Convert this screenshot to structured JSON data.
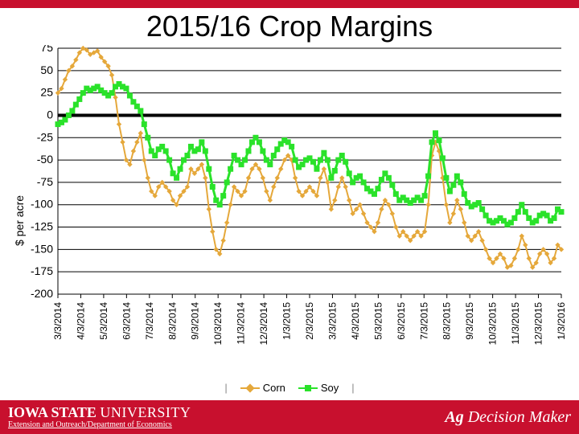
{
  "layout": {
    "top_bar_color": "#c8102e",
    "footer_bar_color": "#c8102e",
    "background": "#ffffff"
  },
  "title": "2015/16 Crop Margins",
  "chart": {
    "type": "line",
    "ylabel": "$ per acre",
    "label_fontsize": 14,
    "ylim": [
      -200,
      75
    ],
    "ytick_step": 25,
    "yticks": [
      75,
      50,
      25,
      0,
      -25,
      -50,
      -75,
      -100,
      -125,
      -150,
      -175,
      -200
    ],
    "xticks": [
      "3/3/2014",
      "4/3/2014",
      "5/3/2014",
      "6/3/2014",
      "7/3/2014",
      "8/3/2014",
      "9/3/2014",
      "10/3/2014",
      "11/3/2014",
      "12/3/2014",
      "1/3/2015",
      "2/3/2015",
      "3/3/2015",
      "4/3/2015",
      "5/3/2015",
      "6/3/2015",
      "7/3/2015",
      "8/3/2015",
      "9/3/2015",
      "10/3/2015",
      "11/3/2015",
      "12/3/2015",
      "1/3/2016"
    ],
    "grid_color": "#000000",
    "zero_line_color": "#000000",
    "zero_line_width": 4,
    "tick_fontsize": 12,
    "plot_bg": "#ffffff",
    "legend_divider_color": "#888888",
    "series": [
      {
        "name": "Corn",
        "color": "#e5a83b",
        "marker": "diamond",
        "line_width": 2,
        "marker_size": 5,
        "values": [
          25,
          30,
          40,
          50,
          55,
          62,
          70,
          75,
          73,
          68,
          70,
          72,
          65,
          60,
          55,
          45,
          20,
          -10,
          -30,
          -50,
          -55,
          -40,
          -30,
          -20,
          -50,
          -70,
          -85,
          -90,
          -80,
          -75,
          -80,
          -85,
          -95,
          -100,
          -90,
          -85,
          -80,
          -60,
          -65,
          -60,
          -55,
          -70,
          -105,
          -130,
          -150,
          -155,
          -140,
          -120,
          -100,
          -80,
          -85,
          -90,
          -85,
          -70,
          -60,
          -55,
          -60,
          -70,
          -85,
          -95,
          -80,
          -70,
          -60,
          -50,
          -45,
          -50,
          -70,
          -85,
          -90,
          -85,
          -80,
          -85,
          -90,
          -70,
          -60,
          -75,
          -105,
          -95,
          -80,
          -70,
          -80,
          -95,
          -110,
          -105,
          -100,
          -110,
          -120,
          -125,
          -130,
          -120,
          -105,
          -95,
          -100,
          -110,
          -125,
          -135,
          -130,
          -135,
          -140,
          -135,
          -130,
          -135,
          -130,
          -100,
          -45,
          -30,
          -40,
          -70,
          -100,
          -120,
          -110,
          -95,
          -105,
          -120,
          -135,
          -140,
          -135,
          -130,
          -140,
          -150,
          -160,
          -165,
          -160,
          -155,
          -160,
          -170,
          -168,
          -160,
          -150,
          -135,
          -145,
          -160,
          -170,
          -165,
          -155,
          -150,
          -155,
          -165,
          -160,
          -145,
          -150
        ]
      },
      {
        "name": "Soy",
        "color": "#2ae22a",
        "marker": "square",
        "line_width": 3,
        "marker_size": 6,
        "values": [
          -10,
          -8,
          -5,
          0,
          5,
          12,
          18,
          25,
          30,
          28,
          30,
          32,
          28,
          25,
          22,
          25,
          32,
          35,
          32,
          30,
          22,
          15,
          10,
          5,
          -10,
          -25,
          -40,
          -45,
          -38,
          -35,
          -40,
          -50,
          -65,
          -70,
          -60,
          -50,
          -45,
          -35,
          -40,
          -38,
          -30,
          -40,
          -60,
          -80,
          -95,
          -100,
          -90,
          -75,
          -60,
          -45,
          -50,
          -55,
          -50,
          -40,
          -30,
          -25,
          -30,
          -40,
          -50,
          -55,
          -45,
          -38,
          -32,
          -28,
          -30,
          -35,
          -50,
          -58,
          -55,
          -50,
          -48,
          -52,
          -60,
          -50,
          -42,
          -50,
          -70,
          -62,
          -50,
          -45,
          -52,
          -65,
          -75,
          -70,
          -68,
          -75,
          -82,
          -85,
          -88,
          -82,
          -72,
          -65,
          -70,
          -78,
          -88,
          -95,
          -92,
          -95,
          -98,
          -95,
          -92,
          -95,
          -90,
          -68,
          -30,
          -20,
          -28,
          -48,
          -70,
          -85,
          -78,
          -68,
          -75,
          -88,
          -98,
          -102,
          -100,
          -98,
          -105,
          -112,
          -118,
          -120,
          -118,
          -115,
          -118,
          -122,
          -120,
          -115,
          -108,
          -100,
          -108,
          -115,
          -120,
          -118,
          -112,
          -110,
          -112,
          -118,
          -115,
          -105,
          -108
        ]
      }
    ]
  },
  "legend": {
    "items": [
      {
        "label": "Corn",
        "color": "#e5a83b",
        "marker": "diamond"
      },
      {
        "label": "Soy",
        "color": "#2ae22a",
        "marker": "square"
      }
    ]
  },
  "footer": {
    "logo_primary": "IOWA STATE",
    "logo_secondary": "UNIVERSITY",
    "subline": "Extension and Outreach/Department of Economics",
    "brand_ag": "Ag",
    "brand_rest": " Decision Maker"
  }
}
